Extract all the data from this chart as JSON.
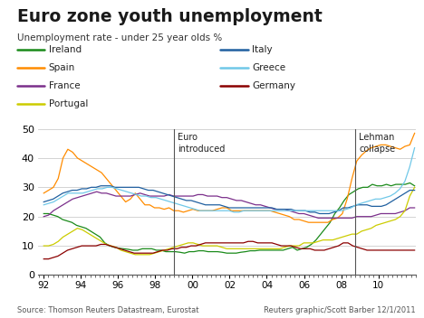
{
  "title": "Euro zone youth unemployment",
  "subtitle": "Unemployment rate - under 25 year olds %",
  "source_left": "Source: Thomson Reuters Datastream, Eurostat",
  "source_right": "Reuters graphic/Scott Barber 12/1/2011",
  "vertical_lines": [
    1999.0,
    2008.75
  ],
  "vline_labels": [
    "Euro\nintroduced",
    "Lehman\ncollapse"
  ],
  "ylim": [
    0,
    50
  ],
  "yticks": [
    0,
    10,
    20,
    30,
    40,
    50
  ],
  "xstart": 1992.0,
  "xend": 2011.95,
  "colors": {
    "Ireland": "#1a8a1a",
    "Spain": "#ff8c00",
    "France": "#7b2f8b",
    "Portugal": "#cccc00",
    "Italy": "#2060a0",
    "Greece": "#70c8e8",
    "Germany": "#8b0000"
  },
  "Ireland": [
    21,
    21,
    20.5,
    20,
    19,
    18.5,
    18,
    17,
    16.5,
    16,
    15,
    14,
    13,
    11,
    10,
    9.5,
    9.2,
    9,
    8.8,
    8.5,
    8.5,
    9,
    9,
    9,
    8.5,
    8.5,
    8,
    8,
    8,
    7.8,
    7.5,
    8,
    8,
    8.3,
    8.3,
    8,
    8,
    8,
    7.8,
    7.5,
    7.5,
    7.5,
    7.8,
    8,
    8.3,
    8.3,
    8.5,
    8.5,
    8.5,
    8.5,
    8.5,
    8.5,
    9,
    9.5,
    8.5,
    9,
    9.5,
    10.5,
    12,
    14,
    16,
    18,
    21,
    23,
    25.5,
    27.5,
    28.5,
    29.5,
    30,
    30,
    31,
    30.5,
    30.5,
    31,
    30.5,
    31,
    31,
    31,
    31.5,
    30.5
  ],
  "Spain": [
    28,
    29,
    30,
    33,
    40,
    43,
    42,
    40,
    39,
    38,
    37,
    36,
    35,
    33,
    31,
    29,
    27,
    25,
    26,
    28,
    26,
    24,
    24,
    23,
    23,
    22.5,
    23,
    22,
    22,
    21.5,
    22,
    22.5,
    22,
    22,
    22,
    22,
    22.5,
    23,
    23,
    22,
    22,
    22,
    22,
    22,
    22,
    22,
    22,
    22,
    21.5,
    21,
    20.5,
    20,
    19,
    19,
    18.5,
    18,
    18,
    18,
    18,
    18,
    19,
    19.5,
    21,
    26,
    33,
    39,
    41,
    42.5,
    43.5,
    44,
    44.5,
    44.5,
    44,
    43.5,
    43,
    44,
    44.5,
    48.5
  ],
  "France": [
    20,
    20.5,
    22,
    23,
    24,
    25,
    26,
    26.5,
    27,
    27.5,
    28,
    28.5,
    28,
    28,
    27.5,
    27,
    27,
    27,
    27,
    27.5,
    28,
    27.5,
    27,
    27,
    27,
    27,
    27.5,
    27,
    27,
    27,
    27,
    27,
    27.5,
    27.5,
    27,
    27,
    27,
    26.5,
    26.5,
    26,
    25.5,
    25.5,
    25,
    24.5,
    24,
    24,
    23.5,
    23,
    22.5,
    22.5,
    22.5,
    22,
    21.5,
    21,
    21,
    20.5,
    20,
    19.5,
    19.5,
    19.5,
    19.5,
    19.5,
    19.5,
    19.5,
    19.5,
    20,
    20,
    20,
    20,
    20.5,
    21,
    21,
    21,
    21,
    21.5,
    22,
    23,
    23
  ],
  "Portugal": [
    10,
    10,
    10.5,
    11.5,
    13,
    14,
    15,
    16,
    15.5,
    14.5,
    13.5,
    12.5,
    11.5,
    10.5,
    10,
    9.5,
    8.5,
    8,
    7.5,
    7,
    7,
    7,
    7,
    7.5,
    8,
    8.5,
    9,
    9.5,
    10,
    10.5,
    11,
    11,
    10.5,
    10,
    10,
    10,
    10,
    9.5,
    9,
    9,
    9,
    9,
    9,
    9,
    9,
    9,
    9,
    9,
    9,
    9,
    9.5,
    10,
    10,
    10,
    11,
    11,
    11,
    11.5,
    12,
    12,
    12,
    12.5,
    13,
    13.5,
    14,
    14,
    15,
    15.5,
    16,
    17,
    17.5,
    18,
    18.5,
    19,
    20,
    22,
    27,
    30
  ],
  "Italy": [
    25,
    25.5,
    26,
    27,
    28,
    28.5,
    29,
    29,
    29.5,
    29.5,
    30,
    30,
    30.5,
    30.5,
    30.5,
    30,
    30,
    30,
    30,
    30,
    30,
    29.5,
    29,
    29,
    28.5,
    28,
    27.5,
    27,
    26.5,
    26,
    25.5,
    25.5,
    25,
    24.5,
    24,
    24,
    24,
    24,
    23.5,
    23,
    23,
    23,
    23,
    23,
    23,
    23,
    23,
    23,
    23,
    22.5,
    22.5,
    22.5,
    22.5,
    22,
    22,
    22,
    21.5,
    21.5,
    21,
    21,
    21,
    21.5,
    22,
    23,
    23,
    23.5,
    24,
    24,
    24,
    23.5,
    23.5,
    23.5,
    24,
    25,
    26,
    27,
    28,
    29,
    29
  ],
  "Greece": [
    24,
    24.5,
    25,
    26,
    27,
    28,
    28,
    28,
    28,
    28.5,
    29,
    29.5,
    29.5,
    30,
    30,
    29.5,
    29,
    28.5,
    28,
    27.5,
    27,
    27,
    26.5,
    26.5,
    26,
    25.5,
    25,
    24.5,
    24,
    23.5,
    23,
    22.5,
    22,
    22,
    22,
    22,
    22,
    22,
    22,
    21.5,
    21.5,
    22,
    22,
    22,
    22,
    22,
    22,
    22,
    22,
    22,
    22,
    22,
    22,
    22,
    22,
    22,
    22,
    22,
    22,
    22,
    22,
    22,
    22.5,
    23,
    24,
    24.5,
    25,
    25.5,
    26,
    26,
    26.5,
    27,
    28,
    29.5,
    32,
    37,
    43.5
  ],
  "Germany": [
    5.5,
    5.5,
    6,
    6.5,
    7.5,
    8.5,
    9,
    9.5,
    10,
    10,
    10,
    10,
    10.5,
    10.5,
    10,
    9.5,
    9,
    8.5,
    8,
    7.5,
    7.5,
    7.5,
    7.5,
    7.5,
    8,
    8.5,
    8.5,
    9,
    9,
    9.5,
    9.5,
    10,
    10,
    10.5,
    11,
    11,
    11,
    11,
    11,
    11,
    11,
    11,
    11,
    11.5,
    11.5,
    11,
    11,
    11,
    11,
    10.5,
    10,
    10,
    10,
    9.5,
    9,
    9,
    9,
    8.5,
    8.5,
    8.5,
    9,
    9.5,
    10,
    11,
    11,
    10,
    9.5,
    9,
    8.5,
    8.5,
    8.5,
    8.5,
    8.5,
    8.5,
    8.5,
    8.5,
    8.5,
    8.5,
    8.5
  ]
}
